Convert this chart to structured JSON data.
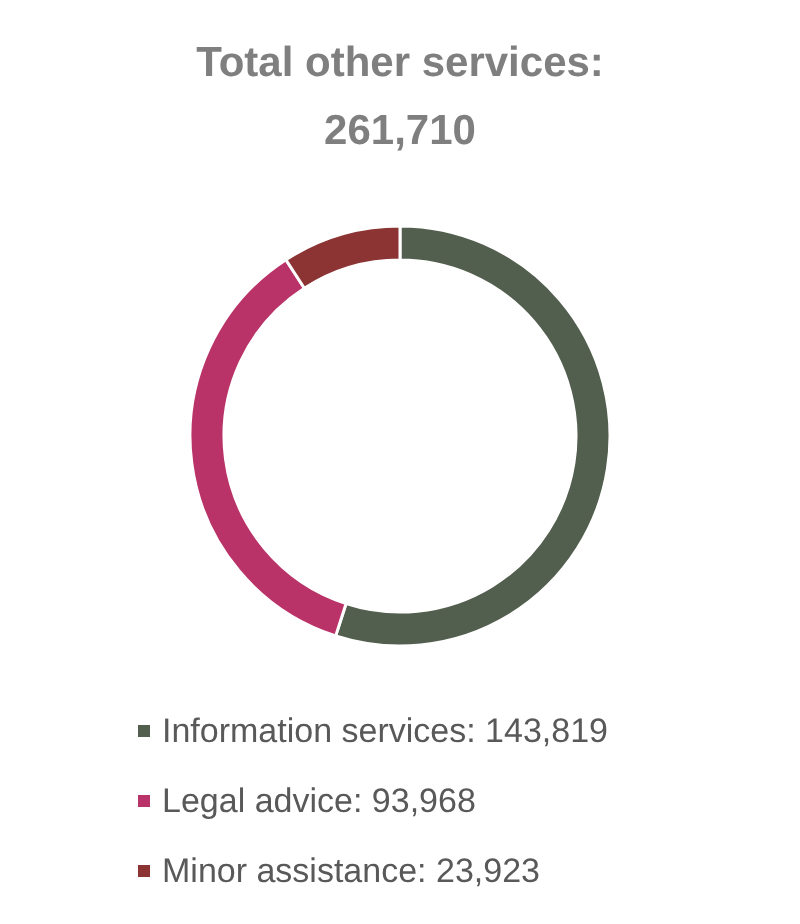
{
  "chart_data": {
    "type": "donut",
    "title": "Total other services:",
    "subtitle": "261,710",
    "categories": [
      "Information services",
      "Legal advice",
      "Minor assistance"
    ],
    "values": [
      143819,
      93968,
      23923
    ],
    "value_labels": [
      "143,819",
      "93,968",
      "23,923"
    ],
    "colors": [
      "#525e4e",
      "#b93368",
      "#8c3434"
    ],
    "legend": "bottom"
  }
}
